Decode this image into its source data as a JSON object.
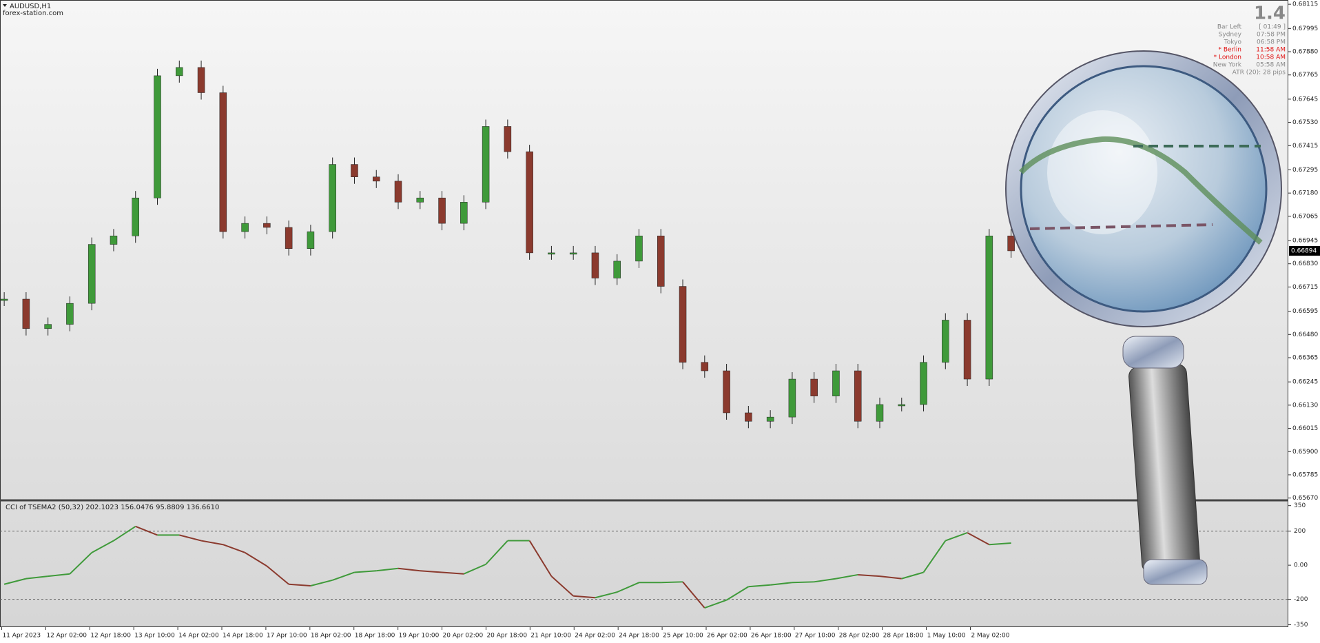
{
  "header": {
    "symbol": "AUDUSD,H1",
    "site": "forex-station.com"
  },
  "info_panel": {
    "big_value": "1.4",
    "rows": [
      [
        "Bar Left",
        "[ 01:49 ]"
      ],
      [
        "Sydney",
        "07:58 PM"
      ],
      [
        "Tokyo",
        "06:58 PM"
      ],
      [
        "* Berlin",
        "11:58 AM"
      ],
      [
        "* London",
        "10:58 AM"
      ],
      [
        "New York",
        "05:58 AM"
      ]
    ],
    "highlight_rows": [
      3,
      4
    ],
    "atr": "ATR (20): 28 pips"
  },
  "main_chart": {
    "ylim": [
      0.65662,
      0.68136
    ],
    "yticks": [
      0.68115,
      0.67995,
      {
        "value": 0.6788,
        "label": "0.67880"
      },
      0.67765,
      0.67645,
      {
        "value": 0.6753,
        "label": "0.67530"
      },
      0.67415,
      0.67295,
      {
        "value": 0.6718,
        "label": "0.67180"
      },
      0.67065,
      0.66945,
      {
        "value": 0.6683,
        "label": "0.66830"
      },
      0.66715,
      0.66595,
      {
        "value": 0.6648,
        "label": "0.66480"
      },
      0.66365,
      0.66245,
      {
        "value": 0.6613,
        "label": "0.66130"
      },
      0.66015,
      {
        "value": 0.659,
        "label": "0.65900"
      },
      0.65785,
      {
        "value": 0.6567,
        "label": "0.65670"
      }
    ],
    "current_price": 0.66894,
    "close": [
      0.66655,
      0.66509,
      0.6653,
      0.66634,
      0.66926,
      0.66968,
      0.67156,
      0.67761,
      0.67802,
      0.67677,
      0.66989,
      0.6703,
      0.6701,
      0.66905,
      0.66989,
      0.67322,
      0.6726,
      0.67239,
      0.67135,
      0.67156,
      0.6703,
      0.67135,
      0.6751,
      0.67385,
      0.66884,
      0.66884,
      0.66884,
      0.66759,
      0.66843,
      0.66968,
      0.66718,
      0.66342,
      0.663,
      0.66092,
      0.6605,
      0.66071,
      0.66259,
      0.66175,
      0.663,
      0.6605,
      0.66133,
      0.66133,
      0.66342,
      0.66551,
      0.66259,
      0.66968,
      0.66894
    ]
  },
  "indicator": {
    "label": "CCI of TSEMA2 (50,32) 202.1023 156.0476 95.8809 136.6610",
    "ylim": [
      -364,
      373
    ],
    "yticks": [
      350,
      200,
      {
        "value": 0,
        "label": "0.00"
      },
      -200,
      -350
    ],
    "levels": [
      200,
      -200
    ],
    "values": [
      -112,
      -79,
      -65,
      -51,
      74,
      144,
      228,
      177,
      177,
      144,
      121,
      74,
      -5,
      -112,
      -121,
      -88,
      -42,
      -33,
      -19,
      -33,
      -42,
      -51,
      5,
      144,
      144,
      -65,
      -181,
      -191,
      -158,
      -102,
      -102,
      -98,
      -251,
      -205,
      -126,
      -116,
      -102,
      -98,
      -79,
      -56,
      -65,
      -79,
      -42,
      144,
      191,
      121,
      130
    ]
  },
  "time_axis": [
    "11 Apr 2023",
    "12 Apr 02:00",
    "12 Apr 18:00",
    "13 Apr 10:00",
    "14 Apr 02:00",
    "14 Apr 18:00",
    "17 Apr 10:00",
    "18 Apr 02:00",
    "18 Apr 18:00",
    "19 Apr 10:00",
    "20 Apr 02:00",
    "20 Apr 18:00",
    "21 Apr 10:00",
    "24 Apr 02:00",
    "24 Apr 18:00",
    "25 Apr 10:00",
    "26 Apr 02:00",
    "26 Apr 18:00",
    "27 Apr 10:00",
    "28 Apr 02:00",
    "28 Apr 18:00",
    "1 May 10:00",
    "2 May 02:00"
  ]
}
